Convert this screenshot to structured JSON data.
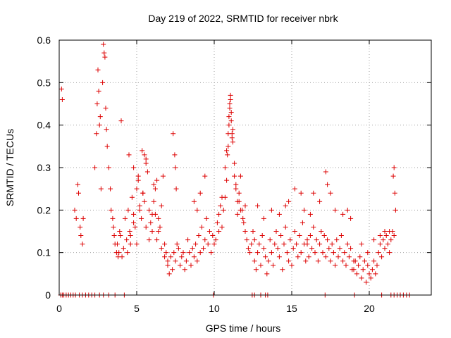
{
  "chart_data": {
    "type": "scatter",
    "title": "Day 219 of 2022, SRMTID for receiver nbrk",
    "xlabel": "GPS time / hours",
    "ylabel": "SRMTID / TECUs",
    "xlim": [
      0,
      24
    ],
    "ylim": [
      0,
      0.6
    ],
    "xticks": [
      0,
      5,
      10,
      15,
      20
    ],
    "yticks": [
      0,
      0.1,
      0.2,
      0.3,
      0.4,
      0.5,
      0.6
    ],
    "ytick_labels": [
      "0",
      "0.1",
      "0.2",
      "0.3",
      "0.4",
      "0.5",
      "0.6"
    ],
    "grid": true,
    "marker": "+",
    "color": "#dd0000",
    "series": [
      {
        "name": "SRMTID",
        "x": [
          0.1,
          0.2,
          0.3,
          0.45,
          0.6,
          0.75,
          0.9,
          1.05,
          1.3,
          1.5,
          1.7,
          1.9,
          2.1,
          2.3,
          2.6,
          2.85,
          3.2,
          3.6,
          4.2,
          9.95,
          12.45,
          12.6,
          13.0,
          13.3,
          13.45,
          17.15,
          19.05,
          20.8,
          21.4,
          21.6,
          21.8,
          22.0,
          22.2,
          22.4,
          22.6,
          0.15,
          0.2,
          1.0,
          1.1,
          1.2,
          1.25,
          1.35,
          1.4,
          1.5,
          1.55,
          2.3,
          2.4,
          2.45,
          2.5,
          2.55,
          2.6,
          2.65,
          2.7,
          2.8,
          2.85,
          2.9,
          2.95,
          3.0,
          3.05,
          3.1,
          3.2,
          3.3,
          3.35,
          3.45,
          3.5,
          3.55,
          3.6,
          3.7,
          3.8,
          3.9,
          4.0,
          3.75,
          3.85,
          3.95,
          4.05,
          4.15,
          4.25,
          4.35,
          4.45,
          4.55,
          4.6,
          4.7,
          4.8,
          4.9,
          5.0,
          5.1,
          5.2,
          5.3,
          5.4,
          5.5,
          5.6,
          5.7,
          5.8,
          5.9,
          6.0,
          6.1,
          6.2,
          6.3,
          6.4,
          6.5,
          6.6,
          6.7,
          6.8,
          6.9,
          7.0,
          4.4,
          4.6,
          4.8,
          5.0,
          5.2,
          5.4,
          5.6,
          5.8,
          6.0,
          6.2,
          6.4,
          6.6,
          6.8,
          4.5,
          4.8,
          5.1,
          5.35,
          5.5,
          5.6,
          6.1,
          6.3,
          7.0,
          7.1,
          7.2,
          7.3,
          7.4,
          7.5,
          7.6,
          7.7,
          7.8,
          7.9,
          8.0,
          8.1,
          8.2,
          8.3,
          8.4,
          8.5,
          8.6,
          8.7,
          8.8,
          8.9,
          9.0,
          9.1,
          9.2,
          9.3,
          9.4,
          9.5,
          9.6,
          9.7,
          9.8,
          9.9,
          10.0,
          7.35,
          7.45,
          7.5,
          7.55,
          8.7,
          8.9,
          9.1,
          9.4,
          10.1,
          10.2,
          10.3,
          10.4,
          10.5,
          10.6,
          10.7,
          10.8,
          10.85,
          10.9,
          10.95,
          11.0,
          11.05,
          11.1,
          11.15,
          11.2,
          11.3,
          11.4,
          11.5,
          11.6,
          11.7,
          11.8,
          11.9,
          12.0,
          12.1,
          12.2,
          12.3,
          12.4,
          12.5,
          12.6,
          10.7,
          10.8,
          10.9,
          10.95,
          11.0,
          11.05,
          11.1,
          11.15,
          11.2,
          11.3,
          11.4,
          11.5,
          11.6,
          10.3,
          10.5,
          11.7,
          11.85,
          12.0,
          12.6,
          12.7,
          12.8,
          12.9,
          13.0,
          13.1,
          13.2,
          13.3,
          13.4,
          13.5,
          13.6,
          13.7,
          13.8,
          13.9,
          14.0,
          14.1,
          14.2,
          14.3,
          14.4,
          14.5,
          14.6,
          14.7,
          14.8,
          14.9,
          15.0,
          15.1,
          15.2,
          15.3,
          15.4,
          15.5,
          15.6,
          15.7,
          15.8,
          15.9,
          16.0,
          12.8,
          13.2,
          13.7,
          14.2,
          14.6,
          14.8,
          15.2,
          15.6,
          15.8,
          16.2,
          16.0,
          16.1,
          16.2,
          16.3,
          16.4,
          16.5,
          16.6,
          16.7,
          16.8,
          16.9,
          17.0,
          17.1,
          17.2,
          17.3,
          17.4,
          17.5,
          17.6,
          17.7,
          17.8,
          17.9,
          18.0,
          18.1,
          18.2,
          18.3,
          18.4,
          18.5,
          18.6,
          18.7,
          18.8,
          18.9,
          19.0,
          16.4,
          16.8,
          17.2,
          17.3,
          17.5,
          17.8,
          18.3,
          18.6,
          18.8,
          19.0,
          19.1,
          19.2,
          19.3,
          19.4,
          19.5,
          19.6,
          19.7,
          19.8,
          19.9,
          20.0,
          20.1,
          20.2,
          20.3,
          20.4,
          20.5,
          20.6,
          20.7,
          20.8,
          20.9,
          21.0,
          21.1,
          21.2,
          21.3,
          21.4,
          21.5,
          21.6,
          19.5,
          19.9,
          20.3,
          20.7,
          21.0,
          21.3,
          21.55,
          21.6,
          21.65,
          21.7
        ],
        "y": [
          0,
          0,
          0,
          0,
          0,
          0,
          0,
          0,
          0,
          0,
          0,
          0,
          0,
          0,
          0,
          0,
          0,
          0,
          0,
          0,
          0,
          0,
          0,
          0,
          0,
          0,
          0,
          0,
          0,
          0,
          0,
          0,
          0,
          0,
          0,
          0.485,
          0.46,
          0.2,
          0.18,
          0.26,
          0.24,
          0.16,
          0.14,
          0.12,
          0.18,
          0.3,
          0.38,
          0.45,
          0.53,
          0.48,
          0.4,
          0.42,
          0.25,
          0.5,
          0.59,
          0.57,
          0.56,
          0.44,
          0.39,
          0.35,
          0.3,
          0.25,
          0.2,
          0.18,
          0.16,
          0.14,
          0.12,
          0.1,
          0.09,
          0.15,
          0.41,
          0.12,
          0.1,
          0.14,
          0.09,
          0.11,
          0.18,
          0.13,
          0.2,
          0.15,
          0.12,
          0.23,
          0.19,
          0.16,
          0.25,
          0.27,
          0.21,
          0.18,
          0.24,
          0.22,
          0.32,
          0.29,
          0.2,
          0.17,
          0.15,
          0.22,
          0.19,
          0.13,
          0.18,
          0.16,
          0.21,
          0.28,
          0.12,
          0.1,
          0.08,
          0.1,
          0.14,
          0.17,
          0.12,
          0.2,
          0.24,
          0.16,
          0.13,
          0.19,
          0.25,
          0.15,
          0.11,
          0.09,
          0.33,
          0.3,
          0.28,
          0.34,
          0.33,
          0.31,
          0.26,
          0.27,
          0.07,
          0.05,
          0.09,
          0.06,
          0.1,
          0.08,
          0.12,
          0.11,
          0.07,
          0.09,
          0.1,
          0.06,
          0.08,
          0.13,
          0.1,
          0.07,
          0.11,
          0.09,
          0.12,
          0.08,
          0.14,
          0.1,
          0.16,
          0.11,
          0.13,
          0.18,
          0.12,
          0.15,
          0.1,
          0.14,
          0.12,
          0.38,
          0.33,
          0.3,
          0.25,
          0.22,
          0.2,
          0.24,
          0.28,
          0.13,
          0.17,
          0.19,
          0.21,
          0.16,
          0.2,
          0.23,
          0.27,
          0.33,
          0.35,
          0.4,
          0.44,
          0.47,
          0.41,
          0.38,
          0.36,
          0.31,
          0.25,
          0.19,
          0.22,
          0.28,
          0.2,
          0.17,
          0.15,
          0.13,
          0.11,
          0.1,
          0.12,
          0.15,
          0.13,
          0.3,
          0.34,
          0.38,
          0.42,
          0.45,
          0.46,
          0.43,
          0.37,
          0.39,
          0.28,
          0.26,
          0.22,
          0.24,
          0.15,
          0.23,
          0.2,
          0.18,
          0.21,
          0.08,
          0.06,
          0.1,
          0.12,
          0.07,
          0.14,
          0.11,
          0.09,
          0.05,
          0.08,
          0.13,
          0.1,
          0.07,
          0.12,
          0.15,
          0.11,
          0.09,
          0.14,
          0.06,
          0.12,
          0.16,
          0.1,
          0.08,
          0.13,
          0.07,
          0.11,
          0.15,
          0.12,
          0.09,
          0.14,
          0.1,
          0.17,
          0.12,
          0.08,
          0.13,
          0.21,
          0.18,
          0.2,
          0.19,
          0.21,
          0.22,
          0.25,
          0.24,
          0.2,
          0.19,
          0.12,
          0.09,
          0.14,
          0.11,
          0.16,
          0.1,
          0.13,
          0.08,
          0.12,
          0.15,
          0.1,
          0.14,
          0.09,
          0.13,
          0.11,
          0.08,
          0.12,
          0.1,
          0.07,
          0.13,
          0.09,
          0.11,
          0.14,
          0.08,
          0.1,
          0.07,
          0.12,
          0.09,
          0.11,
          0.06,
          0.08,
          0.24,
          0.22,
          0.29,
          0.26,
          0.24,
          0.2,
          0.19,
          0.2,
          0.18,
          0.06,
          0.08,
          0.05,
          0.07,
          0.09,
          0.04,
          0.06,
          0.08,
          0.03,
          0.07,
          0.05,
          0.04,
          0.06,
          0.08,
          0.05,
          0.07,
          0.1,
          0.12,
          0.09,
          0.13,
          0.11,
          0.14,
          0.12,
          0.1,
          0.13,
          0.15,
          0.14,
          0.12,
          0.1,
          0.13,
          0.14,
          0.15,
          0.15,
          0.28,
          0.3,
          0.24,
          0.2
        ]
      }
    ]
  }
}
